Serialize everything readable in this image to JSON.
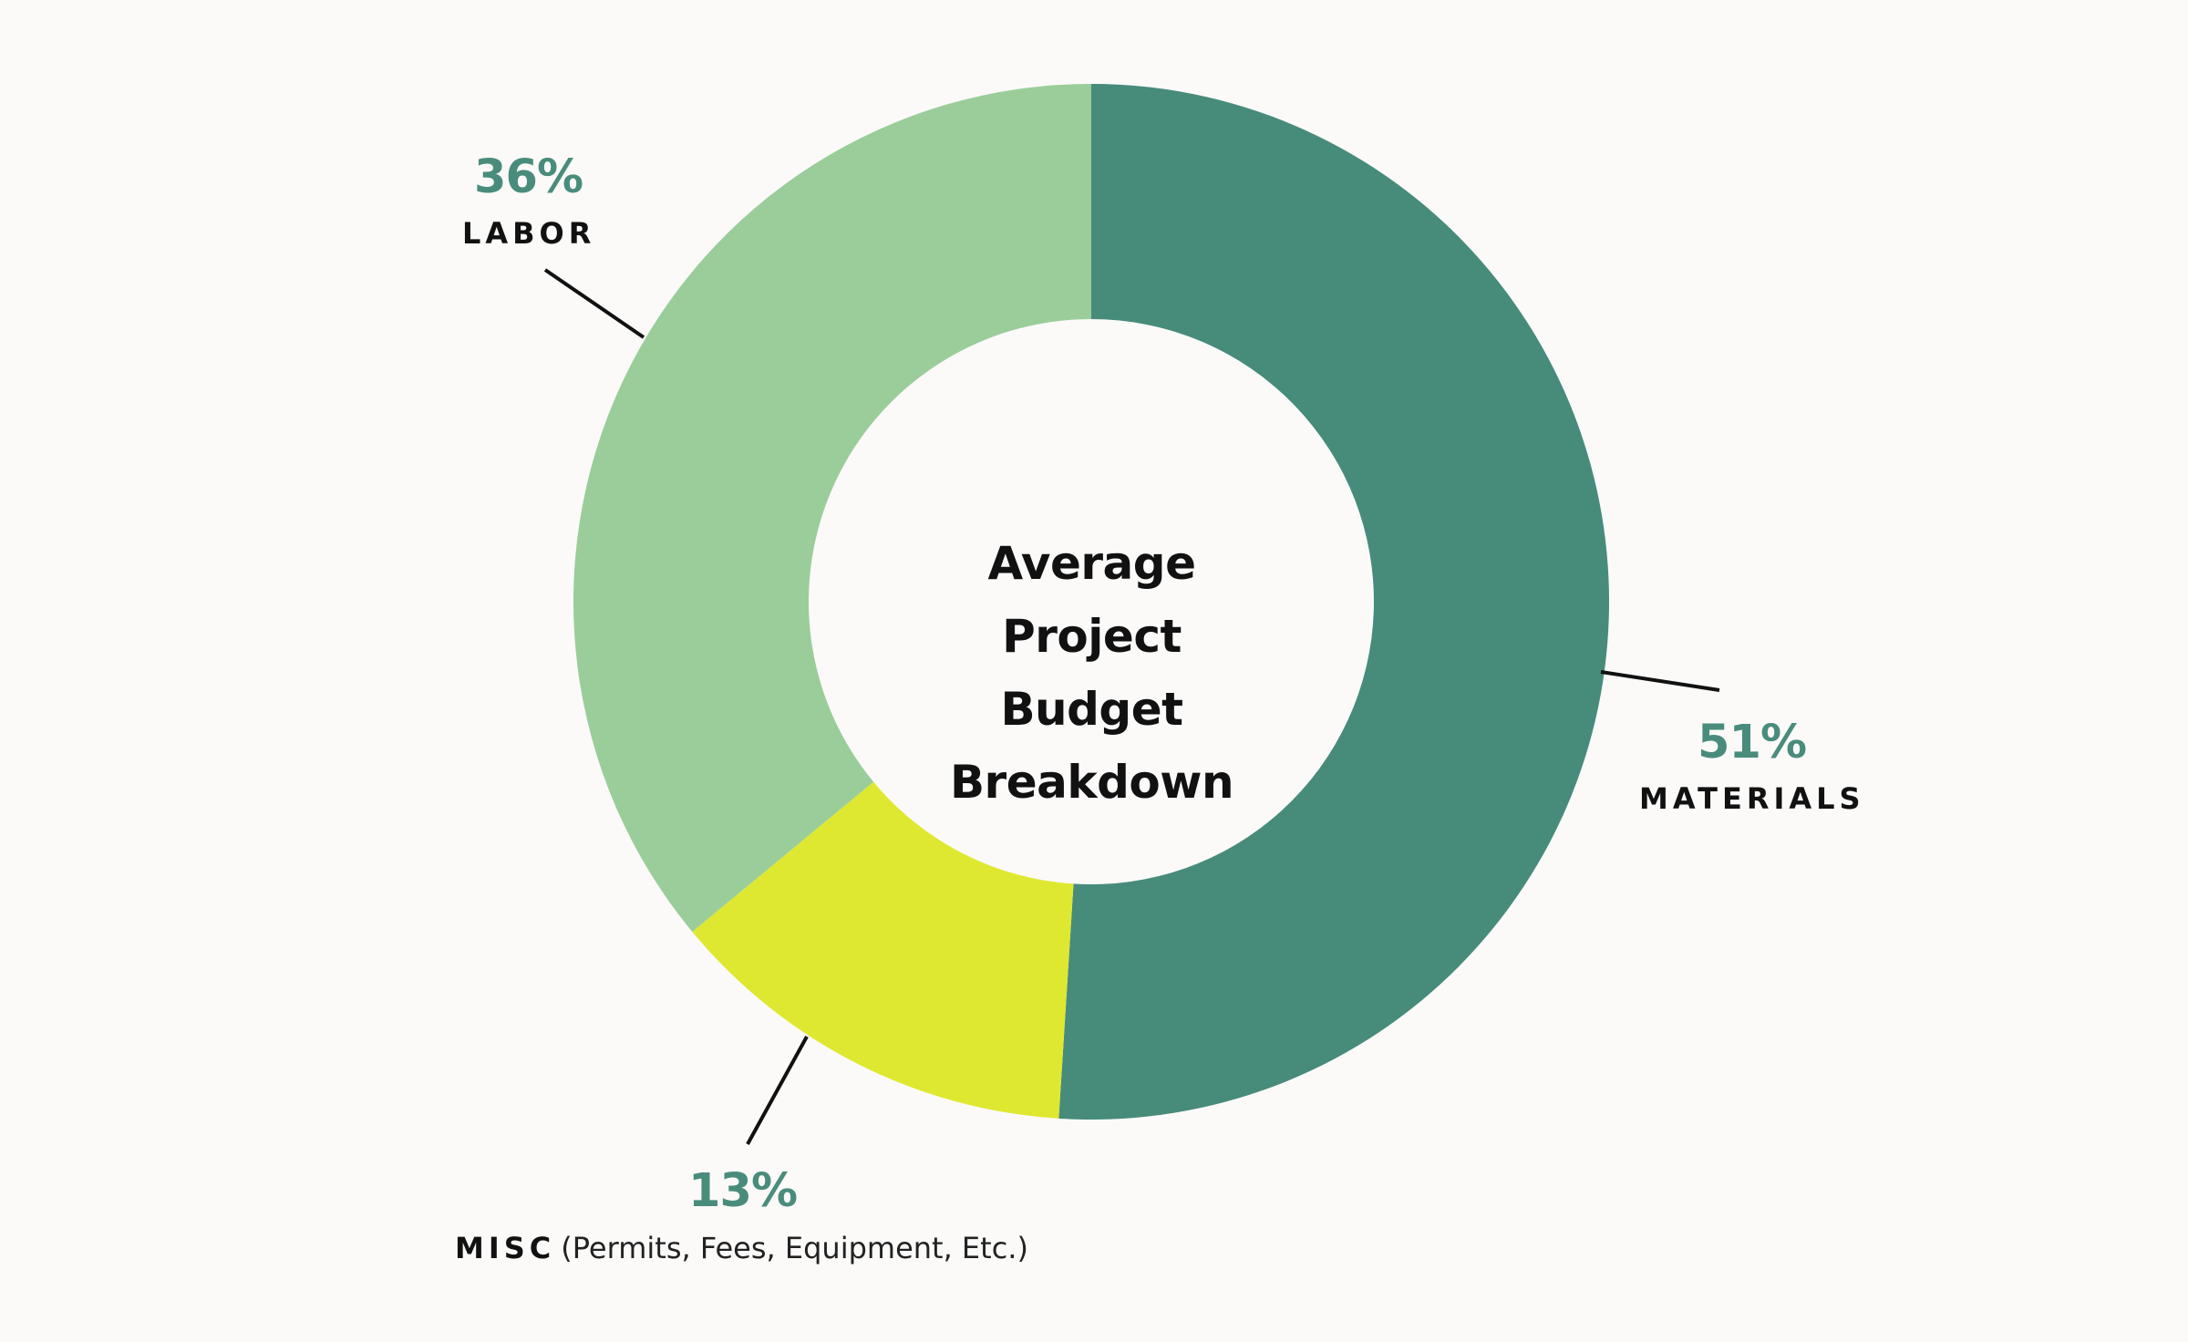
{
  "chart_data": {
    "type": "pie",
    "variant": "donut",
    "title": "Average Project Budget Breakdown",
    "title_lines": [
      "Average Project",
      "Budget Breakdown"
    ],
    "slices": [
      {
        "key": "materials",
        "label": "MATERIALS",
        "note": "",
        "value": 51,
        "value_label": "51%",
        "color": "#478b7b"
      },
      {
        "key": "misc",
        "label": "MISC",
        "note": "(Permits, Fees, Equipment, Etc.)",
        "value": 13,
        "value_label": "13%",
        "color": "#dfe830"
      },
      {
        "key": "labor",
        "label": "LABOR",
        "note": "",
        "value": 36,
        "value_label": "36%",
        "color": "#9bcd9a"
      }
    ],
    "start": "top",
    "direction": "clockwise",
    "legend": "none"
  },
  "colors": {
    "background": "#fbfaf9",
    "percent_text": "#4a8c7c",
    "label_text": "#111111",
    "leader_line": "#111111"
  }
}
